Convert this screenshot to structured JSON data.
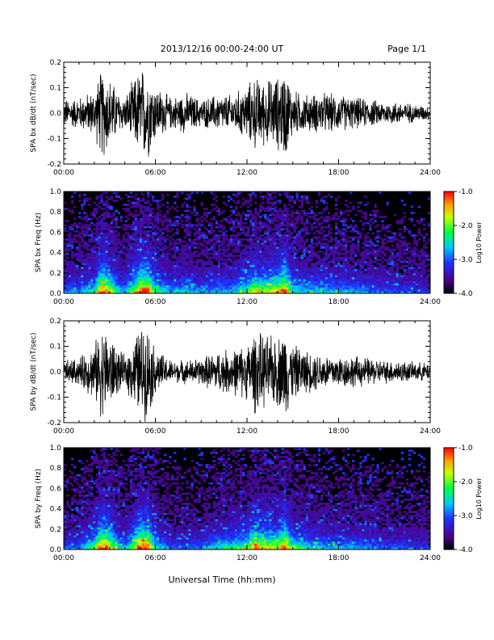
{
  "header": {
    "title": "2013/12/16  00:00-24:00 UT",
    "page": "Page 1/1"
  },
  "footer": {
    "xlabel": "Universal Time (hh:mm)"
  },
  "colorbar": {
    "label": "Log10 Power",
    "ticks": [
      "-1.0",
      "-2.0",
      "-3.0",
      "-4.0"
    ],
    "range": [
      -4.0,
      -1.0
    ]
  },
  "chart_data": [
    {
      "type": "line",
      "title": "",
      "xlabel": "",
      "ylabel": "SPA bx dB/dt (nT/sec)",
      "x_ticks": [
        "00:00",
        "06:00",
        "12:00",
        "18:00",
        "24:00"
      ],
      "y_ticks": [
        "0.2",
        "0.1",
        "0.0",
        "-0.1",
        "-0.2"
      ],
      "xlim": [
        0,
        24
      ],
      "ylim": [
        -0.2,
        0.2
      ],
      "series": [
        {
          "x": [
            0,
            1,
            2,
            2.5,
            3,
            3.5,
            4,
            5,
            5.5,
            6,
            7,
            8,
            9,
            10,
            11,
            12,
            12.5,
            13,
            14,
            14.5,
            15,
            16,
            17,
            18,
            19,
            20,
            21,
            22,
            23,
            24
          ],
          "values": [
            0.06,
            0.07,
            0.1,
            0.2,
            0.16,
            0.1,
            0.07,
            0.2,
            0.2,
            0.12,
            0.07,
            0.09,
            0.06,
            0.08,
            0.08,
            0.12,
            0.16,
            0.14,
            0.16,
            0.2,
            0.1,
            0.08,
            0.09,
            0.08,
            0.07,
            0.06,
            0.05,
            0.05,
            0.04,
            0.03
          ]
        }
      ]
    },
    {
      "type": "heatmap",
      "title": "",
      "xlabel": "",
      "ylabel": "SPA bx Freq (Hz)",
      "x_ticks": [
        "00:00",
        "06:00",
        "12:00",
        "18:00",
        "24:00"
      ],
      "y_ticks": [
        "1.0",
        "0.8",
        "0.6",
        "0.4",
        "0.2",
        "0.0"
      ],
      "xlim": [
        0,
        24
      ],
      "ylim": [
        0,
        1.0
      ],
      "value_range": [
        -4.0,
        -1.0
      ]
    },
    {
      "type": "line",
      "title": "",
      "xlabel": "",
      "ylabel": "SPA by dB/dt (nT/sec)",
      "x_ticks": [
        "00:00",
        "06:00",
        "12:00",
        "18:00",
        "24:00"
      ],
      "y_ticks": [
        "0.2",
        "0.1",
        "0.0",
        "-0.1",
        "-0.2"
      ],
      "xlim": [
        0,
        24
      ],
      "ylim": [
        -0.2,
        0.2
      ],
      "series": [
        {
          "x": [
            0,
            1,
            2,
            2.5,
            3,
            3.5,
            4,
            5,
            5.5,
            6,
            7,
            8,
            9,
            10,
            11,
            12,
            12.5,
            13,
            14,
            14.5,
            15,
            16,
            17,
            18,
            19,
            20,
            21,
            22,
            23,
            24
          ],
          "values": [
            0.05,
            0.06,
            0.12,
            0.2,
            0.17,
            0.1,
            0.07,
            0.2,
            0.2,
            0.1,
            0.05,
            0.05,
            0.06,
            0.09,
            0.1,
            0.12,
            0.18,
            0.16,
            0.15,
            0.2,
            0.12,
            0.09,
            0.08,
            0.07,
            0.07,
            0.06,
            0.05,
            0.05,
            0.04,
            0.04
          ]
        }
      ]
    },
    {
      "type": "heatmap",
      "title": "",
      "xlabel": "",
      "ylabel": "SPA by Freq (Hz)",
      "x_ticks": [
        "00:00",
        "06:00",
        "12:00",
        "18:00",
        "24:00"
      ],
      "y_ticks": [
        "1.0",
        "0.8",
        "0.6",
        "0.4",
        "0.2",
        "0.0"
      ],
      "xlim": [
        0,
        24
      ],
      "ylim": [
        0,
        1.0
      ],
      "value_range": [
        -4.0,
        -1.0
      ]
    }
  ]
}
